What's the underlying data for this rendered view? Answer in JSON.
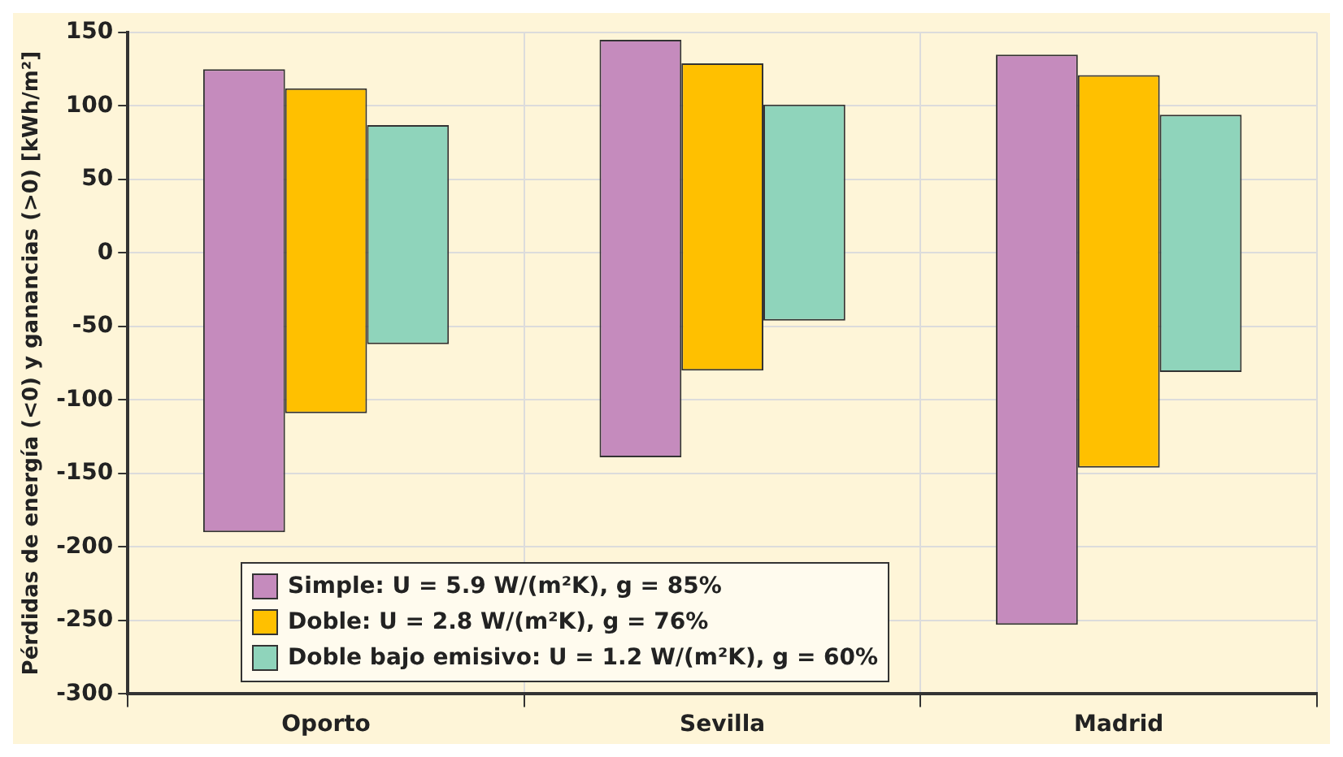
{
  "chart_data": {
    "type": "bar",
    "ylabel": "Pérdidas de energía (<0) y ganancias (>0) [kWh/m²]",
    "categories": [
      "Oporto",
      "Sevilla",
      "Madrid"
    ],
    "series": [
      {
        "name": "Simple: U = 5.9 W/(m²K), g = 85%",
        "color": "#c58bbd",
        "base": [
          -190,
          -139,
          -253
        ],
        "values": [
          315,
          284,
          388
        ]
      },
      {
        "name": "Doble: U = 2.8 W/(m²K), g = 76%",
        "color": "#ffc000",
        "base": [
          -109,
          -80,
          -146
        ],
        "values": [
          221,
          209,
          267
        ]
      },
      {
        "name": "Doble bajo emisivo: U = 1.2 W/(m²K), g = 60%",
        "color": "#8fd4bb",
        "base": [
          -62,
          -46,
          -81
        ],
        "values": [
          149,
          147,
          175
        ]
      }
    ],
    "ylim": [
      -300,
      150
    ],
    "yticks": [
      -300,
      -250,
      -200,
      -150,
      -100,
      -50,
      0,
      50,
      100,
      150
    ],
    "grid": true,
    "legend": "bottom left"
  }
}
